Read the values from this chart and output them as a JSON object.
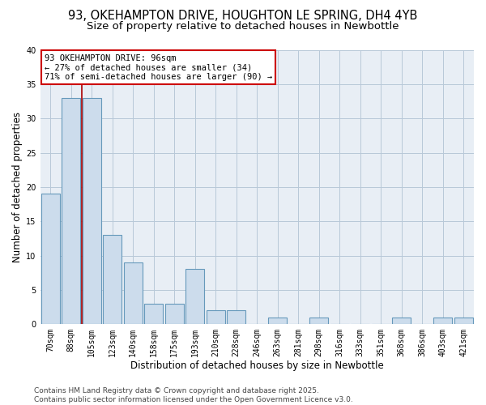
{
  "title_line1": "93, OKEHAMPTON DRIVE, HOUGHTON LE SPRING, DH4 4YB",
  "title_line2": "Size of property relative to detached houses in Newbottle",
  "xlabel": "Distribution of detached houses by size in Newbottle",
  "ylabel": "Number of detached properties",
  "categories": [
    "70sqm",
    "88sqm",
    "105sqm",
    "123sqm",
    "140sqm",
    "158sqm",
    "175sqm",
    "193sqm",
    "210sqm",
    "228sqm",
    "246sqm",
    "263sqm",
    "281sqm",
    "298sqm",
    "316sqm",
    "333sqm",
    "351sqm",
    "368sqm",
    "386sqm",
    "403sqm",
    "421sqm"
  ],
  "values": [
    19,
    33,
    33,
    13,
    9,
    3,
    3,
    8,
    2,
    2,
    0,
    1,
    0,
    1,
    0,
    0,
    0,
    1,
    0,
    1,
    1
  ],
  "bar_color": "#ccdcec",
  "bar_edge_color": "#6699bb",
  "vline_x": 1.5,
  "vline_color": "#aa0000",
  "annotation_text": "93 OKEHAMPTON DRIVE: 96sqm\n← 27% of detached houses are smaller (34)\n71% of semi-detached houses are larger (90) →",
  "annotation_box_facecolor": "#ffffff",
  "annotation_box_edgecolor": "#cc0000",
  "ylim": [
    0,
    40
  ],
  "yticks": [
    0,
    5,
    10,
    15,
    20,
    25,
    30,
    35,
    40
  ],
  "footnote": "Contains HM Land Registry data © Crown copyright and database right 2025.\nContains public sector information licensed under the Open Government Licence v3.0.",
  "bg_color": "#ffffff",
  "plot_bg_color": "#e8eef5",
  "grid_color": "#b8c8d8",
  "title_fontsize": 10.5,
  "subtitle_fontsize": 9.5,
  "axis_label_fontsize": 8.5,
  "tick_fontsize": 7,
  "annotation_fontsize": 7.5,
  "footnote_fontsize": 6.5
}
